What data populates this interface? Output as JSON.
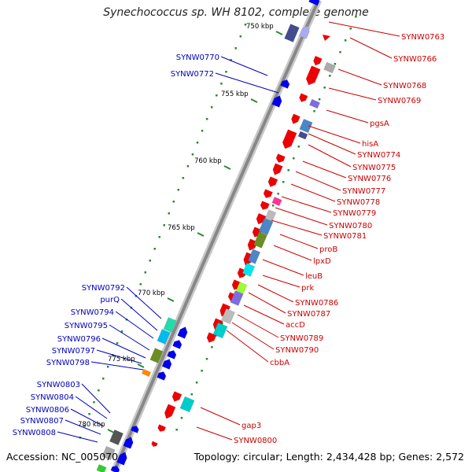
{
  "title": "Synechococcus sp. WH 8102, complete genome",
  "accession": "Accession: NC_005070",
  "summary": "Topology: circular; Length: 2,434,428 bp; Genes: 2,572",
  "colors": {
    "backbone": "#888888",
    "scale": "#2a8a2a",
    "plus_label": "#cc0000",
    "minus_label": "#0000bb",
    "plus_gene": "#ee0000",
    "minus_gene": "#0000ee"
  },
  "scale_labels": [
    "750 kbp",
    "755 kbp",
    "760 kbp",
    "765 kbp",
    "770 kbp",
    "775 kbp",
    "780 kbp"
  ],
  "plus_labels": [
    "SYNW0763",
    "SYNW0766",
    "SYNW0768",
    "SYNW0769",
    "pgsA",
    "hisA",
    "SYNW0774",
    "SYNW0775",
    "SYNW0776",
    "SYNW0777",
    "SYNW0778",
    "SYNW0779",
    "SYNW0780",
    "SYNW0781",
    "proB",
    "lpxD",
    "leuB",
    "prk",
    "SYNW0786",
    "SYNW0787",
    "accD",
    "SYNW0789",
    "SYNW0790",
    "cbbA",
    "gap3",
    "SYNW0800"
  ],
  "minus_labels": [
    "SYNW0770",
    "SYNW0772",
    "SYNW0792",
    "purQ",
    "SYNW0794",
    "SYNW0795",
    "SYNW0796",
    "SYNW0797",
    "SYNW0798",
    "SYNW0803",
    "SYNW0804",
    "SYNW0806",
    "SYNW0807",
    "SYNW0808"
  ]
}
